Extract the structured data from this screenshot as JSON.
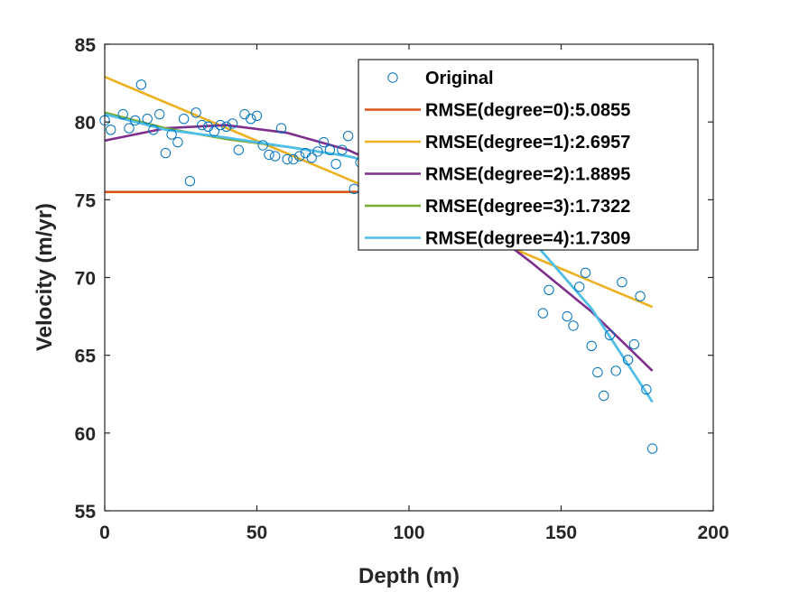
{
  "chart_data": {
    "type": "scatter",
    "title": "",
    "xlabel": "Depth (m)",
    "ylabel": "Velocity (m/yr)",
    "xlim": [
      0,
      200
    ],
    "ylim": [
      55,
      85
    ],
    "xticks": [
      0,
      50,
      100,
      150,
      200
    ],
    "yticks": [
      55,
      60,
      65,
      70,
      75,
      80,
      85
    ],
    "grid": false,
    "legend_position": "top-right",
    "scatter": {
      "name": "Original",
      "color": "#0072BD",
      "x": [
        0,
        2,
        6,
        8,
        10,
        12,
        14,
        16,
        18,
        20,
        22,
        24,
        26,
        28,
        30,
        32,
        34,
        36,
        38,
        40,
        42,
        44,
        46,
        48,
        50,
        52,
        54,
        56,
        58,
        60,
        62,
        64,
        66,
        68,
        70,
        72,
        74,
        76,
        78,
        80,
        82,
        84,
        144,
        146,
        152,
        154,
        156,
        158,
        160,
        162,
        164,
        166,
        168,
        170,
        172,
        174,
        176,
        178,
        180
      ],
      "y": [
        80.1,
        79.5,
        80.5,
        79.6,
        80.1,
        82.4,
        80.2,
        79.5,
        80.5,
        78.0,
        79.2,
        78.7,
        80.2,
        76.2,
        80.6,
        79.8,
        79.7,
        79.4,
        79.8,
        79.7,
        79.9,
        78.2,
        80.5,
        80.2,
        80.4,
        78.5,
        77.9,
        77.8,
        79.6,
        77.6,
        77.6,
        77.8,
        78.0,
        77.7,
        78.1,
        78.7,
        78.2,
        77.3,
        78.2,
        79.1,
        75.7,
        77.4,
        67.7,
        69.2,
        67.5,
        66.9,
        69.4,
        70.3,
        65.6,
        63.9,
        62.4,
        66.3,
        64.0,
        69.7,
        64.7,
        65.7,
        68.8,
        62.8,
        59.0
      ]
    },
    "series": [
      {
        "name": "RMSE(degree=0):5.0855",
        "color": "#D95319",
        "x": [
          0,
          180
        ],
        "y": [
          75.5,
          75.5
        ]
      },
      {
        "name": "RMSE(degree=1):2.6957",
        "color": "#EDB120",
        "x": [
          0,
          180
        ],
        "y": [
          82.9,
          68.1
        ]
      },
      {
        "name": "RMSE(degree=2):1.8895",
        "color": "#7E2F8E",
        "x": [
          0,
          20,
          40,
          60,
          80,
          100,
          120,
          140,
          160,
          180
        ],
        "y": [
          78.8,
          79.6,
          79.8,
          79.3,
          78.2,
          76.4,
          74.0,
          71.0,
          67.8,
          64.0
        ]
      },
      {
        "name": "RMSE(degree=3):1.7322",
        "color": "#77AC30",
        "x": [
          0,
          20,
          40,
          60,
          80,
          100,
          120,
          140,
          160,
          180
        ],
        "y": [
          80.6,
          79.6,
          78.9,
          78.4,
          77.8,
          76.9,
          75.2,
          72.5,
          68.0,
          62.0
        ]
      },
      {
        "name": "RMSE(degree=4):1.7309",
        "color": "#4DBEEE",
        "x": [
          0,
          20,
          40,
          60,
          80,
          100,
          120,
          140,
          160,
          180
        ],
        "y": [
          80.5,
          79.5,
          79.0,
          78.4,
          77.8,
          76.8,
          75.2,
          72.5,
          68.0,
          62.0
        ]
      }
    ]
  }
}
